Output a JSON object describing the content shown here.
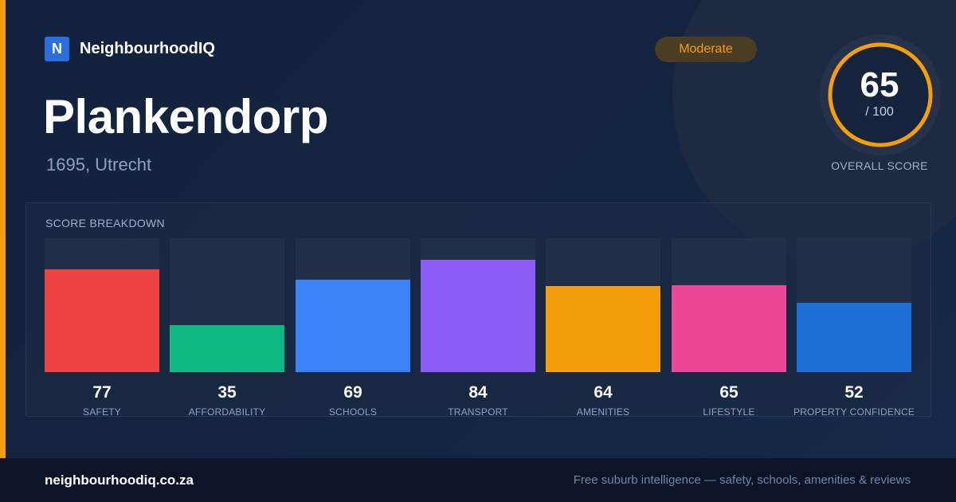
{
  "brand": {
    "logo_letter": "N",
    "name": "NeighbourhoodIQ"
  },
  "place": {
    "name": "Plankendorp",
    "location": "1695, Utrecht"
  },
  "rating_badge": "Moderate",
  "overall": {
    "score": "65",
    "max": "/ 100",
    "label": "OVERALL SCORE",
    "value": 65,
    "ring_color": "#f59e0b"
  },
  "breakdown": {
    "title": "SCORE BREAKDOWN",
    "items": [
      {
        "label": "SAFETY",
        "value": 77,
        "color": "#ef4444"
      },
      {
        "label": "AFFORDABILITY",
        "value": 35,
        "color": "#10b981"
      },
      {
        "label": "SCHOOLS",
        "value": 69,
        "color": "#3b82f6"
      },
      {
        "label": "TRANSPORT",
        "value": 84,
        "color": "#8b5cf6"
      },
      {
        "label": "AMENITIES",
        "value": 64,
        "color": "#f59e0b"
      },
      {
        "label": "LIFESTYLE",
        "value": 65,
        "color": "#ec4899"
      },
      {
        "label": "PROPERTY CONFIDENCE",
        "value": 52,
        "color": "#1d6fd8"
      }
    ]
  },
  "footer": {
    "url": "neighbourhoodiq.co.za",
    "tagline": "Free suburb intelligence — safety, schools, amenities & reviews"
  }
}
